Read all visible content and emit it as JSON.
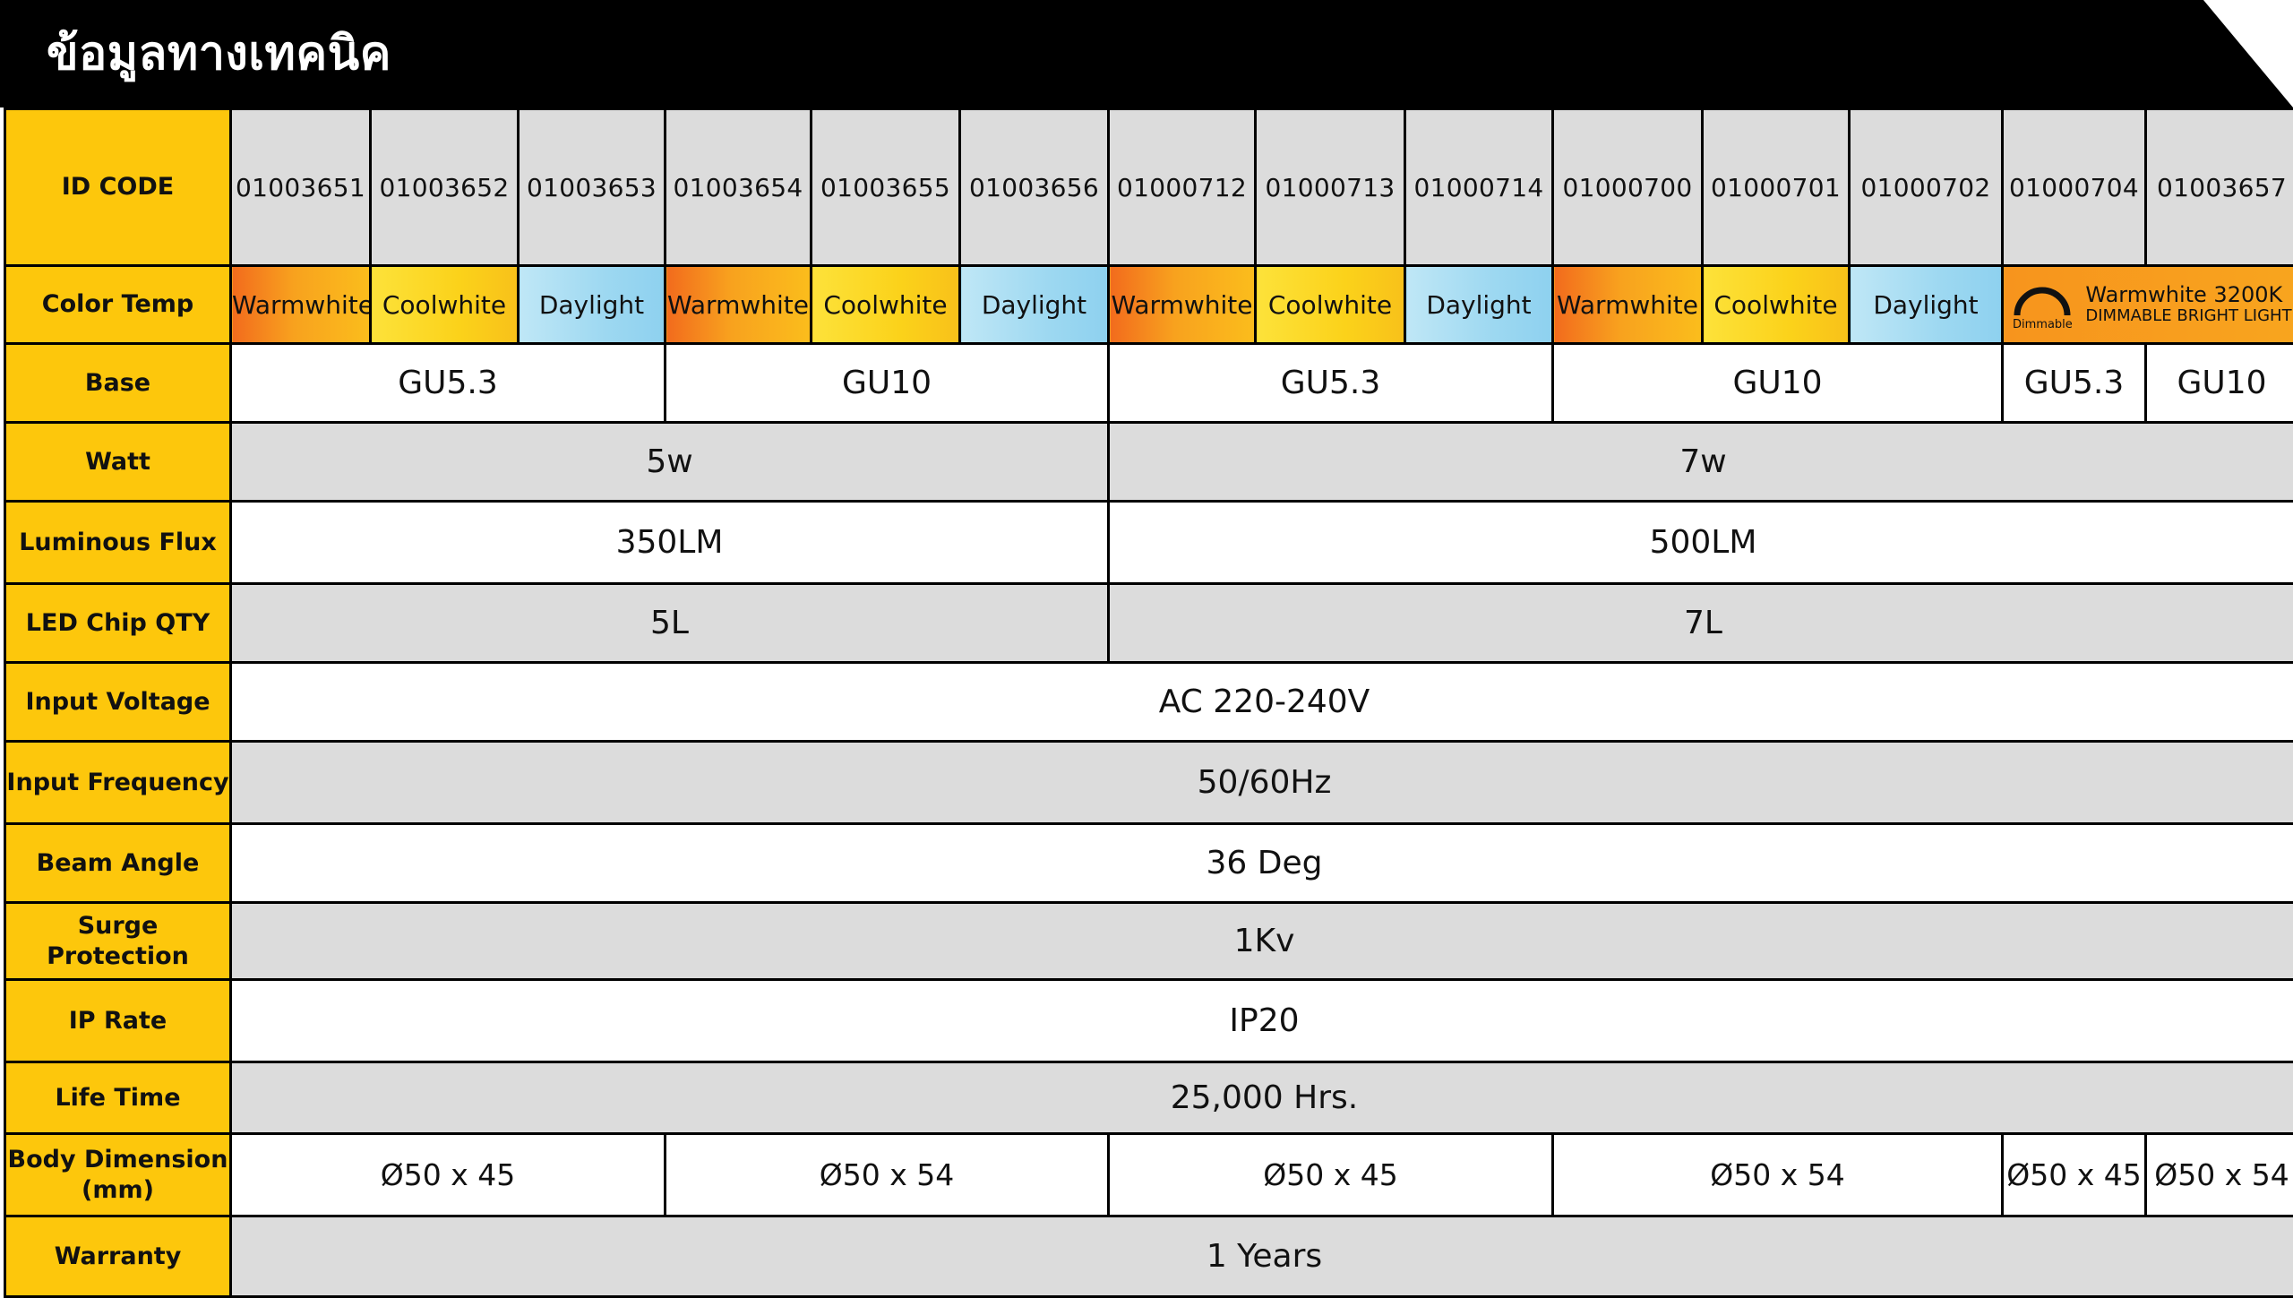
{
  "header": {
    "title": "ข้อมูลทางเทคนิค"
  },
  "labels": {
    "id_code": "ID CODE",
    "color_temp": "Color Temp",
    "base": "Base",
    "watt": "Watt",
    "luminous_flux": "Luminous Flux",
    "led_chip_qty": "LED Chip QTY",
    "input_voltage": "Input Voltage",
    "input_frequency": "Input Frequency",
    "beam_angle": "Beam Angle",
    "surge_protection": "Surge Protection",
    "ip_rate": "IP Rate",
    "life_time": "Life Time",
    "body_dimension_line1": "Body Dimension",
    "body_dimension_line2": "(mm)",
    "warranty": "Warranty"
  },
  "id_codes": [
    "01003651",
    "01003652",
    "01003653",
    "01003654",
    "01003655",
    "01003656",
    "01000712",
    "01000713",
    "01000714",
    "01000700",
    "01000701",
    "01000702",
    "01000704",
    "01003657"
  ],
  "color_temps": [
    "Warmwhite",
    "Coolwhite",
    "Daylight",
    "Warmwhite",
    "Coolwhite",
    "Daylight",
    "Warmwhite",
    "Coolwhite",
    "Daylight",
    "Warmwhite",
    "Coolwhite",
    "Daylight"
  ],
  "dimmable": {
    "icon": "dimmable-arc-icon",
    "icon_label": "Dimmable",
    "line1": "Warmwhite 3200K",
    "line2": "DIMMABLE BRIGHT LIGHT"
  },
  "base": [
    "GU5.3",
    "GU10",
    "GU5.3",
    "GU10",
    "GU5.3",
    "GU10"
  ],
  "watt": [
    "5w",
    "7w"
  ],
  "luminous_flux": [
    "350LM",
    "500LM"
  ],
  "led_chip_qty": [
    "5L",
    "7L"
  ],
  "input_voltage": "AC 220-240V",
  "input_frequency": "50/60Hz",
  "beam_angle": "36 Deg",
  "surge_protection": "1Kv",
  "ip_rate": "IP20",
  "life_time": "25,000 Hrs.",
  "body_dimension": [
    "Ø50 x 45",
    "Ø50 x 54",
    "Ø50 x 45",
    "Ø50 x 54",
    "Ø50 x 45",
    "Ø50 x 54"
  ],
  "warranty": "1 Years",
  "colors": {
    "label_bg": "#fdc70c",
    "header_bg": "#000000",
    "gray_row": "#dcdcdc",
    "warmwhite": "#f7941d",
    "coolwhite": "#fbd21a",
    "daylight": "#9dd8f1"
  }
}
